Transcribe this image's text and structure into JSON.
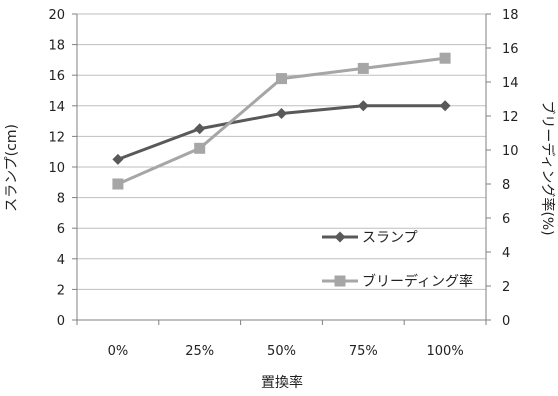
{
  "chart_data": {
    "type": "line",
    "categories": [
      "0%",
      "25%",
      "50%",
      "75%",
      "100%"
    ],
    "xlabel": "置換率",
    "ylabel_left": "スランプ(cm)",
    "ylabel_right": "ブリーディング率(%)",
    "ylim_left": [
      0,
      20
    ],
    "ylim_right": [
      0,
      18
    ],
    "yticks_left": [
      0,
      2,
      4,
      6,
      8,
      10,
      12,
      14,
      16,
      18,
      20
    ],
    "yticks_right": [
      0,
      2,
      4,
      6,
      8,
      10,
      12,
      14,
      16,
      18
    ],
    "grid": true,
    "legend_position": "right",
    "series": [
      {
        "name": "スランプ",
        "axis": "left",
        "values": [
          10.5,
          12.5,
          13.5,
          14.0,
          14.0
        ],
        "color": "#595959",
        "marker": "diamond"
      },
      {
        "name": "ブリーディング率",
        "axis": "right",
        "values": [
          8.0,
          10.1,
          14.2,
          14.8,
          15.4
        ],
        "color": "#a6a6a6",
        "marker": "square"
      }
    ]
  }
}
